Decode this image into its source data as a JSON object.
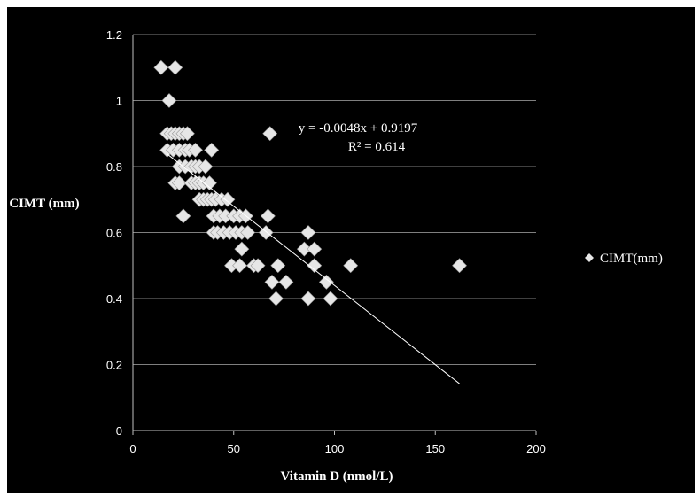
{
  "chart_data": {
    "type": "scatter",
    "xlabel": "Vitamin D (nmol/L)",
    "ylabel": "CIMT (mm)",
    "xlim": [
      0,
      200
    ],
    "ylim": [
      0,
      1.2
    ],
    "x_ticks": [
      "0",
      "50",
      "100",
      "150",
      "200"
    ],
    "y_ticks": [
      "0",
      "0.2",
      "0.4",
      "0.6",
      "0.8",
      "1",
      "1.2"
    ],
    "grid": "horizontal",
    "legend": {
      "position": "right",
      "label": "CIMT(mm)"
    },
    "trendline": {
      "equation": "y = -0.0048x + 0.9197",
      "r_squared": "R² = 0.614",
      "slope": -0.0048,
      "intercept": 0.9197,
      "x_range": [
        17,
        162
      ]
    },
    "colors": {
      "background": "#000000",
      "marker": "#e6e6e6",
      "grid": "#7f7f7f",
      "trendline": "#ffffff"
    },
    "series": [
      {
        "name": "CIMT(mm)",
        "points": [
          [
            14,
            1.1
          ],
          [
            21,
            1.1
          ],
          [
            18,
            1.0
          ],
          [
            17,
            0.9
          ],
          [
            19,
            0.9
          ],
          [
            21,
            0.9
          ],
          [
            23,
            0.9
          ],
          [
            25,
            0.9
          ],
          [
            27,
            0.9
          ],
          [
            68,
            0.9
          ],
          [
            17,
            0.85
          ],
          [
            20,
            0.85
          ],
          [
            23,
            0.85
          ],
          [
            26,
            0.85
          ],
          [
            28,
            0.85
          ],
          [
            31,
            0.85
          ],
          [
            39,
            0.85
          ],
          [
            23,
            0.8
          ],
          [
            26,
            0.8
          ],
          [
            29,
            0.8
          ],
          [
            31,
            0.8
          ],
          [
            33,
            0.8
          ],
          [
            36,
            0.8
          ],
          [
            21,
            0.75
          ],
          [
            23,
            0.75
          ],
          [
            29,
            0.75
          ],
          [
            31,
            0.75
          ],
          [
            33,
            0.75
          ],
          [
            35,
            0.75
          ],
          [
            38,
            0.75
          ],
          [
            33,
            0.7
          ],
          [
            35,
            0.7
          ],
          [
            37,
            0.7
          ],
          [
            39,
            0.7
          ],
          [
            41,
            0.7
          ],
          [
            44,
            0.7
          ],
          [
            47,
            0.7
          ],
          [
            25,
            0.65
          ],
          [
            40,
            0.65
          ],
          [
            43,
            0.65
          ],
          [
            46,
            0.65
          ],
          [
            50,
            0.65
          ],
          [
            53,
            0.65
          ],
          [
            56,
            0.65
          ],
          [
            67,
            0.65
          ],
          [
            40,
            0.6
          ],
          [
            42,
            0.6
          ],
          [
            45,
            0.6
          ],
          [
            48,
            0.6
          ],
          [
            51,
            0.6
          ],
          [
            54,
            0.6
          ],
          [
            57,
            0.6
          ],
          [
            66,
            0.6
          ],
          [
            87,
            0.6
          ],
          [
            54,
            0.55
          ],
          [
            85,
            0.55
          ],
          [
            90,
            0.55
          ],
          [
            49,
            0.5
          ],
          [
            53,
            0.5
          ],
          [
            60,
            0.5
          ],
          [
            62,
            0.5
          ],
          [
            72,
            0.5
          ],
          [
            90,
            0.5
          ],
          [
            108,
            0.5
          ],
          [
            162,
            0.5
          ],
          [
            69,
            0.45
          ],
          [
            76,
            0.45
          ],
          [
            96,
            0.45
          ],
          [
            71,
            0.4
          ],
          [
            87,
            0.4
          ],
          [
            98,
            0.4
          ]
        ]
      }
    ]
  }
}
